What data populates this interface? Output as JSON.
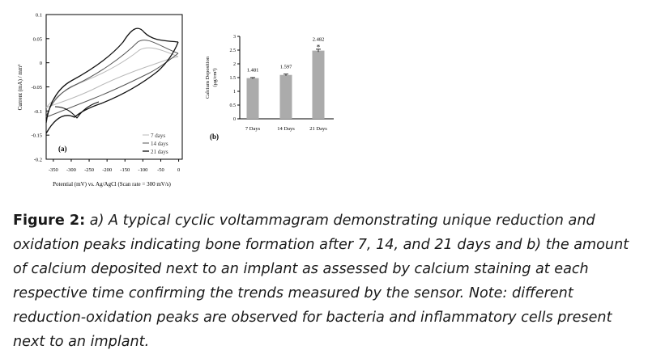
{
  "figure": {
    "panel_a": {
      "tag": "(a)",
      "ylabel": "Current (mA) / mm²",
      "xlabel": "Potential (mV) vs. Ag/AgCl (Scan rate = 300 mV/s)",
      "yticks": [
        "0.1",
        "0.05",
        "0",
        "-0.05",
        "-0.1",
        "-0.15",
        "-0.2"
      ],
      "xticks": [
        "-350",
        "-300",
        "-250",
        "-200",
        "-150",
        "-100",
        "-50",
        "0"
      ],
      "legend": [
        "7 days",
        "14 days",
        "21 days"
      ]
    },
    "panel_b": {
      "tag": "(b)",
      "ylabel_line1": "Calcium Deposition",
      "ylabel_line2": "(µg/cm²)",
      "yticks": [
        "3",
        "2.5",
        "2",
        "1.5",
        "1",
        "0.5",
        "0"
      ],
      "categories": [
        "7 Days",
        "14 Days",
        "21 Days"
      ],
      "value_labels": [
        "1.481",
        "1.597",
        "2.482"
      ],
      "significance_mark": "*"
    }
  },
  "chart_data": [
    {
      "type": "line",
      "xlabel": "Potential (mV) vs. Ag/AgCl (Scan rate = 300 mV/s)",
      "ylabel": "Current (mA) / mm²",
      "xlim": [
        -370,
        10
      ],
      "ylim": [
        -0.2,
        0.1
      ],
      "legend_position": "bottom-right",
      "grid": false,
      "series": [
        {
          "name": "7 days",
          "color": "#b9b9b9"
        },
        {
          "name": "14 days",
          "color": "#555555"
        },
        {
          "name": "21 days",
          "color": "#111111"
        }
      ]
    },
    {
      "type": "bar",
      "categories": [
        "7 Days",
        "14 Days",
        "21 Days"
      ],
      "values": [
        1.481,
        1.597,
        2.482
      ],
      "errors": [
        0.02,
        0.03,
        0.05
      ],
      "ylim": [
        0,
        3
      ],
      "ylabel": "Calcium Deposition (µg/cm²)",
      "bar_color": "#ababab",
      "grid": false
    }
  ],
  "caption": {
    "label": "Figure 2:",
    "text": "a) A typical cyclic voltammagram demonstrating unique reduction and oxidation peaks indicating bone formation after 7, 14, and 21 days and b) the amount of calcium deposited next to an implant as assessed by calcium staining at each respective time confirming the trends measured by the sensor. Note: different reduction-oxidation peaks are observed for bacteria and inflammatory cells present next to an implant."
  }
}
